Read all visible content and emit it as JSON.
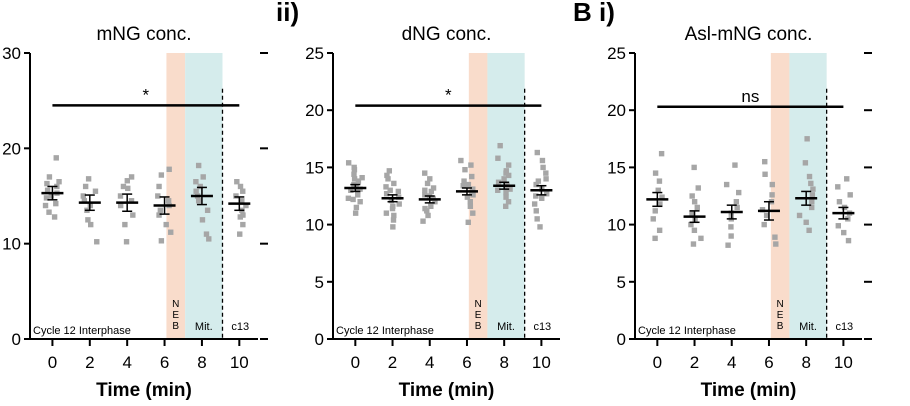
{
  "chart_data": [
    {
      "type": "scatter",
      "panel_label": "",
      "title": "mNG conc.",
      "xlabel": "Time (min)",
      "ylabel": "",
      "x_ticks": [
        "0",
        "2",
        "4",
        "6",
        "8",
        "10"
      ],
      "y_ticks": [
        "0",
        "10",
        "20",
        "30"
      ],
      "xlim": [
        -1.2,
        11
      ],
      "ylim": [
        0,
        30
      ],
      "significance": "*",
      "sig_bar": {
        "x_from": 0,
        "x_to": 10,
        "y": 24.5
      },
      "phase_labels": {
        "interphase": "Cycle 12 Interphase",
        "neb": "NEB",
        "mitosis": "Mit.",
        "next": "c13"
      },
      "shaded_regions": [
        {
          "name": "NEB",
          "x_from": 6.1,
          "x_to": 7.1,
          "color": "#f9dccb"
        },
        {
          "name": "Mit.",
          "x_from": 7.1,
          "x_to": 9.1,
          "color": "#d5ecec"
        }
      ],
      "dashed_line_x": 9.1,
      "series": [
        {
          "x": 0,
          "mean": 15.3,
          "sem": 0.7,
          "points": [
            14.2,
            14.8,
            15.0,
            15.3,
            15.6,
            16.0,
            16.3,
            16.5,
            17.0,
            19.0,
            14.0,
            13.3,
            12.8
          ]
        },
        {
          "x": 2,
          "mean": 14.3,
          "sem": 0.8,
          "points": [
            12.0,
            12.5,
            13.5,
            14.0,
            14.5,
            15.0,
            15.5,
            16.0,
            16.8,
            10.2
          ]
        },
        {
          "x": 4,
          "mean": 14.3,
          "sem": 0.9,
          "points": [
            10.2,
            12.0,
            13.0,
            14.0,
            14.5,
            15.0,
            15.8,
            16.0,
            16.6,
            17.0
          ]
        },
        {
          "x": 6,
          "mean": 14.0,
          "sem": 0.9,
          "points": [
            10.3,
            11.2,
            12.0,
            13.0,
            13.5,
            14.0,
            14.5,
            15.0,
            16.0,
            17.2,
            17.8
          ]
        },
        {
          "x": 8,
          "mean": 15.0,
          "sem": 0.9,
          "points": [
            11.0,
            12.5,
            13.5,
            14.5,
            15.0,
            15.5,
            16.0,
            16.5,
            17.0,
            18.2,
            10.5
          ]
        },
        {
          "x": 10,
          "mean": 14.2,
          "sem": 0.7,
          "points": [
            12.0,
            12.8,
            13.5,
            14.0,
            14.5,
            15.0,
            15.5,
            16.0,
            16.5,
            13.0,
            11.0
          ]
        }
      ]
    },
    {
      "type": "scatter",
      "panel_label": "ii)",
      "title": "dNG conc.",
      "xlabel": "Time (min)",
      "ylabel": "",
      "x_ticks": [
        "0",
        "2",
        "4",
        "6",
        "8",
        "10"
      ],
      "y_ticks": [
        "0",
        "5",
        "10",
        "15",
        "20",
        "25"
      ],
      "xlim": [
        -1.2,
        11
      ],
      "ylim": [
        0,
        25
      ],
      "significance": "*",
      "sig_bar": {
        "x_from": 0,
        "x_to": 10,
        "y": 20.4
      },
      "phase_labels": {
        "interphase": "Cycle 12 Interphase",
        "neb": "NEB",
        "mitosis": "Mit.",
        "next": "c13"
      },
      "shaded_regions": [
        {
          "name": "NEB",
          "x_from": 6.1,
          "x_to": 7.1,
          "color": "#f9dccb"
        },
        {
          "name": "Mit.",
          "x_from": 7.1,
          "x_to": 9.1,
          "color": "#d5ecec"
        }
      ],
      "dashed_line_x": 9.1,
      "series": [
        {
          "x": 0,
          "mean": 13.2,
          "sem": 0.3,
          "points": [
            11.0,
            11.5,
            12.0,
            12.3,
            12.6,
            12.9,
            13.1,
            13.3,
            13.5,
            13.8,
            14.1,
            14.4,
            14.8,
            15.0,
            15.4,
            12.2,
            13.0,
            14.0
          ]
        },
        {
          "x": 2,
          "mean": 12.3,
          "sem": 0.3,
          "points": [
            9.8,
            10.4,
            11.0,
            11.4,
            11.8,
            12.1,
            12.4,
            12.7,
            13.0,
            13.3,
            13.6,
            14.0,
            14.3,
            14.7,
            11.6,
            12.9,
            10.8
          ]
        },
        {
          "x": 4,
          "mean": 12.2,
          "sem": 0.3,
          "points": [
            10.3,
            10.8,
            11.2,
            11.6,
            12.0,
            12.3,
            12.6,
            12.9,
            13.2,
            13.6,
            14.0,
            14.5,
            11.4,
            12.5,
            13.0
          ]
        },
        {
          "x": 6,
          "mean": 12.9,
          "sem": 0.3,
          "points": [
            10.2,
            11.0,
            11.6,
            12.0,
            12.4,
            12.8,
            13.1,
            13.4,
            13.8,
            14.2,
            14.8,
            15.2,
            15.6,
            12.6,
            13.5
          ]
        },
        {
          "x": 8,
          "mean": 13.4,
          "sem": 0.3,
          "points": [
            11.6,
            12.0,
            12.4,
            12.8,
            13.1,
            13.4,
            13.7,
            14.0,
            14.3,
            14.7,
            15.2,
            15.8,
            16.9,
            13.0,
            14.5
          ]
        },
        {
          "x": 10,
          "mean": 13.0,
          "sem": 0.4,
          "points": [
            9.8,
            10.5,
            11.2,
            11.8,
            12.3,
            12.7,
            13.1,
            13.5,
            14.0,
            14.5,
            15.0,
            15.6,
            16.3,
            12.5,
            13.8
          ]
        }
      ]
    },
    {
      "type": "scatter",
      "panel_label": "B i)",
      "title": "Asl-mNG conc.",
      "xlabel": "Time (min)",
      "ylabel": "",
      "x_ticks": [
        "0",
        "2",
        "4",
        "6",
        "8",
        "10"
      ],
      "y_ticks": [
        "0",
        "5",
        "10",
        "15",
        "20",
        "25"
      ],
      "xlim": [
        -1.2,
        11
      ],
      "ylim": [
        0,
        25
      ],
      "significance": "ns",
      "sig_bar": {
        "x_from": 0,
        "x_to": 10,
        "y": 20.3
      },
      "phase_labels": {
        "interphase": "Cycle 12 Interphase",
        "neb": "NEB",
        "mitosis": "Mit.",
        "next": "c13"
      },
      "shaded_regions": [
        {
          "name": "NEB",
          "x_from": 6.1,
          "x_to": 7.1,
          "color": "#f9dccb"
        },
        {
          "name": "Mit.",
          "x_from": 7.1,
          "x_to": 9.1,
          "color": "#d5ecec"
        }
      ],
      "dashed_line_x": 9.1,
      "series": [
        {
          "x": 0,
          "mean": 12.2,
          "sem": 0.6,
          "points": [
            8.8,
            9.5,
            10.5,
            11.2,
            11.8,
            12.4,
            13.0,
            13.8,
            14.5,
            16.2
          ]
        },
        {
          "x": 2,
          "mean": 10.7,
          "sem": 0.5,
          "points": [
            8.3,
            8.8,
            9.5,
            10.0,
            10.5,
            11.0,
            11.5,
            12.0,
            12.5,
            13.2,
            15.0
          ]
        },
        {
          "x": 4,
          "mean": 11.1,
          "sem": 0.6,
          "points": [
            8.2,
            9.0,
            9.8,
            10.5,
            11.0,
            11.5,
            12.0,
            12.8,
            13.5,
            15.2
          ]
        },
        {
          "x": 6,
          "mean": 11.2,
          "sem": 0.8,
          "points": [
            8.3,
            8.9,
            10.0,
            10.8,
            11.3,
            12.0,
            12.6,
            13.5,
            14.4,
            15.5
          ]
        },
        {
          "x": 8,
          "mean": 12.3,
          "sem": 0.6,
          "points": [
            9.5,
            10.2,
            10.8,
            11.5,
            12.0,
            12.6,
            13.1,
            13.6,
            14.2,
            15.4,
            17.5
          ]
        },
        {
          "x": 10,
          "mean": 11.0,
          "sem": 0.5,
          "points": [
            8.6,
            9.3,
            9.9,
            10.5,
            11.0,
            11.5,
            12.0,
            12.6,
            13.3,
            14.0
          ]
        }
      ]
    }
  ]
}
